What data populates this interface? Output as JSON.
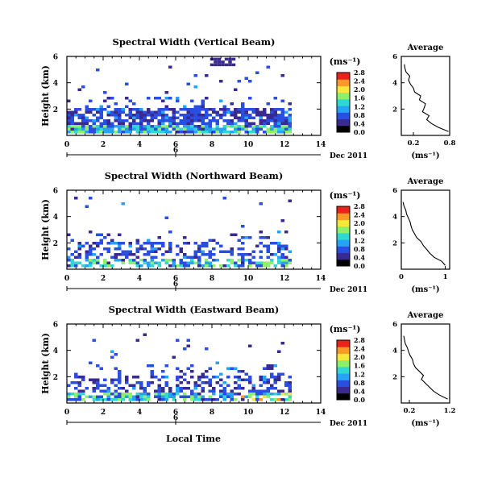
{
  "figure": {
    "date_label": "Dec 2011",
    "xlabel_bottom": "Local Time",
    "colorbar_unit": "(ms⁻¹)",
    "avg_title": "Average",
    "avg_xlabel": "(ms⁻¹)",
    "ylabel": "Height (km)",
    "colorbar_colors": [
      "#000000",
      "#3a2a8f",
      "#2a4fe0",
      "#27a3f5",
      "#2fd8d0",
      "#8ef06a",
      "#f6e83a",
      "#f99a28",
      "#e8231c"
    ]
  },
  "chart_data": [
    {
      "type": "heatmap",
      "title": "Spectral Width (Vertical Beam)",
      "xlabel": "",
      "ylabel": "Height (km)",
      "xlim": [
        0,
        14
      ],
      "ylim": [
        0,
        6
      ],
      "xticks": [
        "0",
        "2",
        "4",
        "6",
        "8",
        "10",
        "12",
        "14"
      ],
      "yticks": [
        "2",
        "4",
        "6"
      ],
      "day_tick": "6",
      "colorbar_ticks": [
        "0.0",
        "0.4",
        "0.8",
        "1.2",
        "1.6",
        "2.0",
        "2.4",
        "2.8"
      ],
      "data_extent_hours": [
        0,
        12.3
      ],
      "avg_profile": {
        "xlim": [
          0,
          0.8
        ],
        "xticks": [
          "0.2",
          "0.8"
        ],
        "yticks": [
          "2",
          "4",
          "6"
        ],
        "height_km": [
          0.3,
          0.6,
          0.9,
          1.2,
          1.5,
          1.8,
          2.1,
          2.4,
          2.7,
          3.0,
          3.3,
          3.6,
          3.9,
          4.2,
          4.5,
          4.8,
          5.1,
          5.4
        ],
        "width": [
          0.78,
          0.62,
          0.5,
          0.42,
          0.46,
          0.35,
          0.38,
          0.4,
          0.3,
          0.32,
          0.22,
          0.2,
          0.15,
          0.12,
          0.14,
          0.08,
          0.06,
          0.05
        ]
      }
    },
    {
      "type": "heatmap",
      "title": "Spectral Width (Northward Beam)",
      "xlabel": "",
      "ylabel": "Height (km)",
      "xlim": [
        0,
        14
      ],
      "ylim": [
        0,
        6
      ],
      "xticks": [
        "0",
        "2",
        "4",
        "6",
        "8",
        "10",
        "12",
        "14"
      ],
      "yticks": [
        "2",
        "4",
        "6"
      ],
      "day_tick": "6",
      "colorbar_ticks": [
        "0.0",
        "0.4",
        "0.8",
        "1.2",
        "1.6",
        "2.0",
        "2.4",
        "2.8"
      ],
      "data_extent_hours": [
        0,
        12.3
      ],
      "avg_profile": {
        "xlim": [
          0,
          1.1
        ],
        "xticks": [
          "0",
          "1"
        ],
        "yticks": [
          "2",
          "4",
          "6"
        ],
        "height_km": [
          0.3,
          0.6,
          0.9,
          1.2,
          1.5,
          1.8,
          2.1,
          2.4,
          2.7,
          3.0,
          3.3,
          3.6,
          3.9,
          4.2,
          4.5,
          4.8,
          5.1
        ],
        "width": [
          1.0,
          0.92,
          0.75,
          0.65,
          0.58,
          0.5,
          0.45,
          0.35,
          0.3,
          0.25,
          0.22,
          0.2,
          0.16,
          0.12,
          0.1,
          0.06,
          0.04
        ]
      }
    },
    {
      "type": "heatmap",
      "title": "Spectral Width (Eastward Beam)",
      "xlabel": "Local Time",
      "ylabel": "Height (km)",
      "xlim": [
        0,
        14
      ],
      "ylim": [
        0,
        6
      ],
      "xticks": [
        "0",
        "2",
        "4",
        "6",
        "8",
        "10",
        "12",
        "14"
      ],
      "yticks": [
        "2",
        "4",
        "6"
      ],
      "day_tick": "6",
      "colorbar_ticks": [
        "0.0",
        "0.4",
        "0.8",
        "1.2",
        "1.6",
        "2.0",
        "2.4",
        "2.8"
      ],
      "data_extent_hours": [
        0,
        12.3
      ],
      "avg_profile": {
        "xlim": [
          0,
          1.2
        ],
        "xticks": [
          "0.2",
          "1.2"
        ],
        "yticks": [
          "2",
          "4",
          "6"
        ],
        "height_km": [
          0.3,
          0.6,
          0.9,
          1.2,
          1.5,
          1.8,
          2.1,
          2.4,
          2.7,
          3.0,
          3.3,
          3.6,
          3.9,
          4.2,
          4.5,
          4.8,
          5.1
        ],
        "width": [
          1.15,
          0.95,
          0.8,
          0.7,
          0.6,
          0.5,
          0.55,
          0.45,
          0.35,
          0.3,
          0.28,
          0.22,
          0.18,
          0.15,
          0.1,
          0.08,
          0.06
        ]
      }
    }
  ]
}
